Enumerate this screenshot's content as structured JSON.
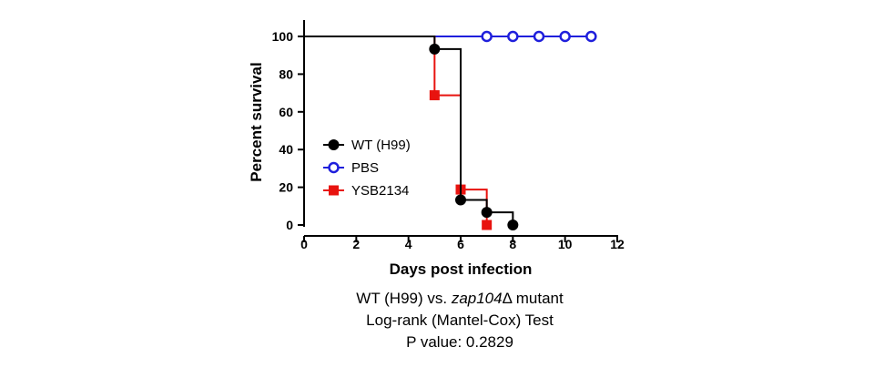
{
  "chart_data": {
    "type": "line",
    "xlabel": "Days post infection",
    "ylabel": "Percent survival",
    "xlim": [
      0,
      12
    ],
    "ylim": [
      0,
      100
    ],
    "xticks": [
      0,
      2,
      4,
      6,
      8,
      10,
      12
    ],
    "yticks": [
      0,
      20,
      40,
      60,
      80,
      100
    ],
    "grid": false,
    "legend_position": "center-left",
    "series": [
      {
        "name": "WT (H99)",
        "color": "#000000",
        "marker": "filled-circle",
        "step_x": [
          0,
          5,
          6,
          7,
          8
        ],
        "step_y": [
          100,
          93.3,
          13.3,
          6.7,
          0
        ],
        "markers": [
          [
            5,
            93.3
          ],
          [
            6,
            13.3
          ],
          [
            7,
            6.7
          ],
          [
            8,
            0
          ]
        ]
      },
      {
        "name": "PBS",
        "color": "#1f1fdc",
        "marker": "open-circle",
        "step_x": [
          0,
          11
        ],
        "step_y": [
          100,
          100
        ],
        "markers": [
          [
            7,
            100
          ],
          [
            8,
            100
          ],
          [
            9,
            100
          ],
          [
            10,
            100
          ],
          [
            11,
            100
          ]
        ]
      },
      {
        "name": "YSB2134",
        "color": "#e8130f",
        "marker": "filled-square",
        "step_x": [
          0,
          5,
          6,
          7
        ],
        "step_y": [
          100,
          68.8,
          18.8,
          0
        ],
        "markers": [
          [
            5,
            68.8
          ],
          [
            6,
            18.8
          ],
          [
            7,
            0
          ]
        ]
      }
    ]
  },
  "caption": {
    "line1_prefix": "WT (H99) vs. ",
    "line1_italic": "zap104",
    "line1_suffix": "Δ mutant",
    "line2": "Log-rank (Mantel-Cox) Test",
    "line3": "P value: 0.2829"
  }
}
